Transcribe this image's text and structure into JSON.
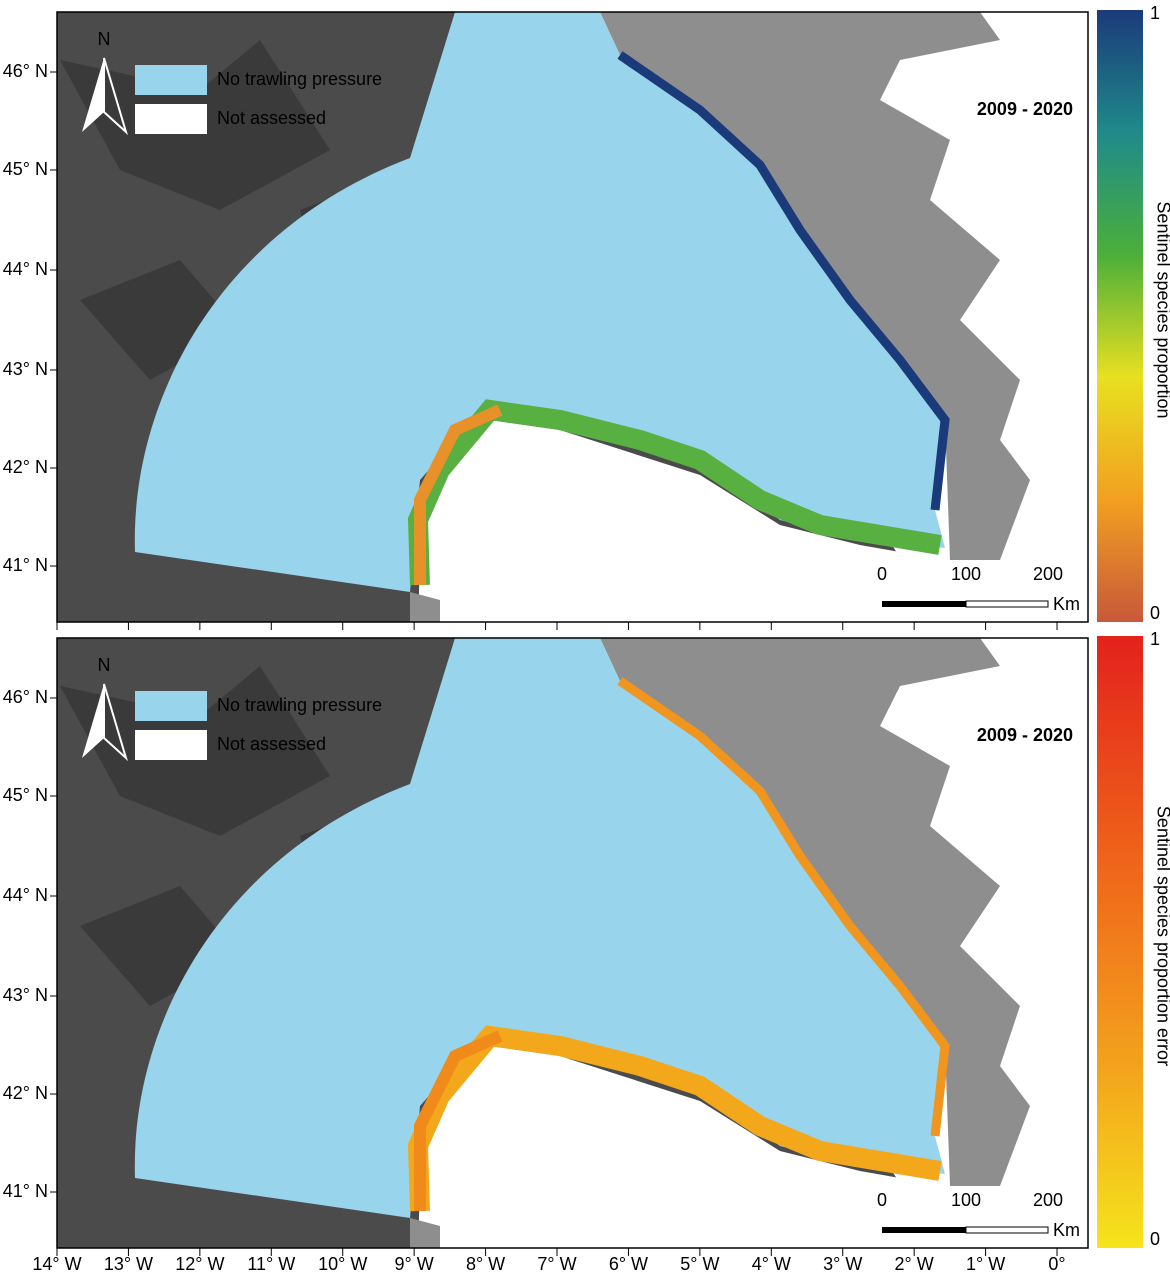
{
  "panels": [
    {
      "north": "N",
      "legend": [
        "No trawling pressure",
        "Not assessed"
      ],
      "period": "2009 - 2020",
      "scale": {
        "labels": [
          "0",
          "100",
          "200"
        ],
        "unit": "Km"
      },
      "colorbar": {
        "title": "Sentinel species proportion",
        "max_label": "1",
        "min_label": "0"
      }
    },
    {
      "north": "N",
      "legend": [
        "No trawling pressure",
        "Not assessed"
      ],
      "period": "2009 - 2020",
      "scale": {
        "labels": [
          "0",
          "100",
          "200"
        ],
        "unit": "Km"
      },
      "colorbar": {
        "title": "Sentinel species proportion error",
        "max_label": "1",
        "min_label": "0"
      }
    }
  ],
  "lat_labels": [
    "46° N",
    "45° N",
    "44° N",
    "43° N",
    "42° N",
    "41° N"
  ],
  "lon_labels": [
    "14° W",
    "13° W",
    "12° W",
    "11° W",
    "10° W",
    "9° W",
    "8° W",
    "7° W",
    "6° W",
    "5° W",
    "4° W",
    "3° W",
    "2° W",
    "1° W",
    "0°"
  ]
}
